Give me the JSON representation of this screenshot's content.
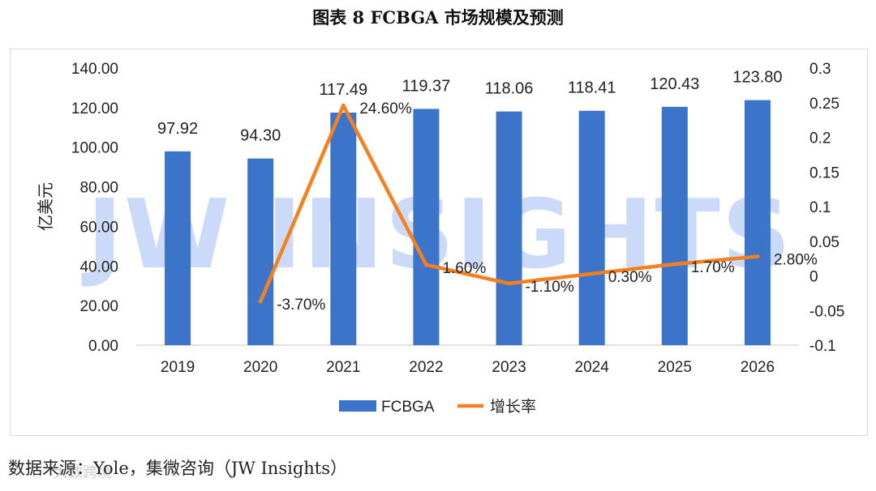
{
  "title": "图表 8 FCBGA  市场规模及预测",
  "source": "数据来源：Yole，集微咨询（JW Insights）",
  "watermark": "JW INSIGHTS",
  "footer_watermark": "大数跨境",
  "colors": {
    "bar": "#3b74c8",
    "line": "#f5801f",
    "axis": "#d9d9d9",
    "text": "#222222"
  },
  "chart_data": {
    "type": "bar+line",
    "categories": [
      "2019",
      "2020",
      "2021",
      "2022",
      "2023",
      "2024",
      "2025",
      "2026"
    ],
    "series": [
      {
        "name": "FCBGA",
        "type": "bar",
        "axis": "left",
        "values": [
          97.92,
          94.3,
          117.49,
          119.37,
          118.06,
          118.41,
          120.43,
          123.8
        ],
        "labels": [
          "97.92",
          "94.30",
          "117.49",
          "119.37",
          "118.06",
          "118.41",
          "120.43",
          "123.80"
        ]
      },
      {
        "name": "增长率",
        "type": "line",
        "axis": "right",
        "values": [
          null,
          -0.037,
          0.246,
          0.016,
          -0.011,
          0.003,
          0.017,
          0.028
        ],
        "labels": [
          "",
          "-3.70%",
          "24.60%",
          "1.60%",
          "-1.10%",
          "0.30%",
          "1.70%",
          "2.80%"
        ]
      }
    ],
    "ylabel": "亿美元",
    "ylim": [
      0,
      140
    ],
    "yticks": [
      "0.00",
      "20.00",
      "40.00",
      "60.00",
      "80.00",
      "100.00",
      "120.00",
      "140.00"
    ],
    "y2lim": [
      -0.1,
      0.3
    ],
    "y2ticks": [
      "-0.1",
      "-0.05",
      "0",
      "0.05",
      "0.1",
      "0.15",
      "0.2",
      "0.25",
      "0.3"
    ],
    "legend": [
      "FCBGA",
      "增长率"
    ],
    "legend_position": "bottom"
  }
}
